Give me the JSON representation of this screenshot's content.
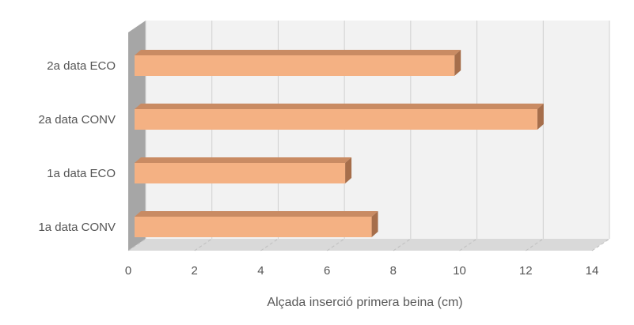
{
  "chart_data": {
    "type": "bar",
    "orientation": "horizontal",
    "style": "3d",
    "categories": [
      "1a data CONV",
      "1a data ECO",
      "2a data CONV",
      "2a data ECO"
    ],
    "values": [
      7.3,
      6.5,
      12.3,
      9.8
    ],
    "xlabel": "Alçada inserció primera beina (cm)",
    "ylabel": "",
    "xlim": [
      0,
      14
    ],
    "xticks": [
      0,
      2,
      4,
      6,
      8,
      10,
      12,
      14
    ],
    "grid": true,
    "legend": "none",
    "colors": {
      "bar_front": "#F4B183",
      "bar_top": "#C98B63",
      "bar_side": "#A66E4B",
      "wall_back": "#F2F2F2",
      "wall_side": "#A6A6A6",
      "floor": "#D9D9D9",
      "grid": "#D0D0D0"
    }
  }
}
